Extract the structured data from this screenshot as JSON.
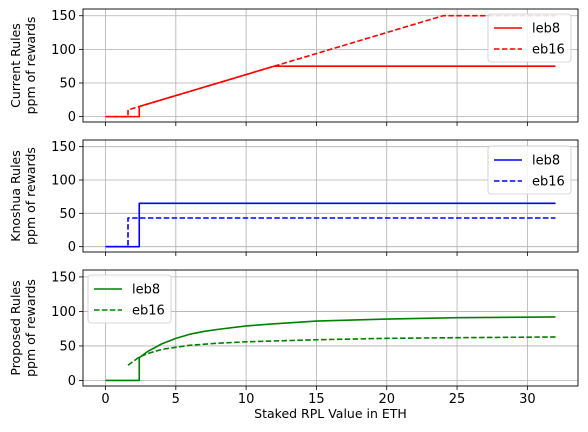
{
  "chart_data": {
    "type": "line",
    "xlabel": "Staked RPL Value in ETH",
    "x_ticks": [
      0,
      5,
      10,
      15,
      20,
      25,
      30
    ],
    "xlim": [
      -1.6,
      33.6
    ],
    "legend_placement": [
      "upper right",
      "upper right",
      "upper left"
    ],
    "grid": true,
    "subplots": [
      {
        "ylabel": [
          "Current Rules",
          "ppm of rewards"
        ],
        "ylim": [
          -8,
          160
        ],
        "y_ticks": [
          0,
          50,
          100,
          150
        ],
        "color": "#ff0000",
        "series": [
          {
            "name": "leb8",
            "style": "solid",
            "x": [
              0,
              2.4,
              2.4,
              12,
              32
            ],
            "y": [
              0,
              0,
              15,
              75,
              75
            ]
          },
          {
            "name": "eb16",
            "style": "dashed",
            "x": [
              0,
              1.6,
              1.6,
              24,
              32
            ],
            "y": [
              0,
              0,
              10,
              150,
              150
            ]
          }
        ]
      },
      {
        "ylabel": [
          "Knoshua Rules",
          "ppm of rewards"
        ],
        "ylim": [
          -8,
          160
        ],
        "y_ticks": [
          0,
          50,
          100,
          150
        ],
        "color": "#0000ff",
        "series": [
          {
            "name": "leb8",
            "style": "solid",
            "x": [
              0,
              2.4,
              2.4,
              32
            ],
            "y": [
              0,
              0,
              65,
              65
            ]
          },
          {
            "name": "eb16",
            "style": "dashed",
            "x": [
              0,
              1.6,
              1.6,
              32
            ],
            "y": [
              0,
              0,
              43,
              43
            ]
          }
        ]
      },
      {
        "ylabel": [
          "Proposed Rules",
          "ppm of rewards"
        ],
        "ylim": [
          -8,
          160
        ],
        "y_ticks": [
          0,
          50,
          100,
          150
        ],
        "color": "#008000",
        "series": [
          {
            "name": "leb8",
            "style": "solid",
            "x": [
              0,
              2.4,
              2.4,
              3,
              4,
              5,
              6,
              7,
              8,
              10,
              12,
              15,
              20,
              25,
              32
            ],
            "y": [
              0,
              0,
              33,
              42,
              53,
              61,
              67,
              71,
              74,
              79,
              82,
              86,
              89,
              91,
              92
            ]
          },
          {
            "name": "eb16",
            "style": "dashed",
            "x": [
              1.6,
              2,
              2.4,
              3,
              4,
              5,
              6,
              8,
              10,
              15,
              20,
              25,
              32
            ],
            "y": [
              22,
              28,
              34,
              39,
              45,
              48,
              51,
              54,
              56,
              59,
              61,
              62,
              63
            ]
          }
        ]
      }
    ]
  }
}
